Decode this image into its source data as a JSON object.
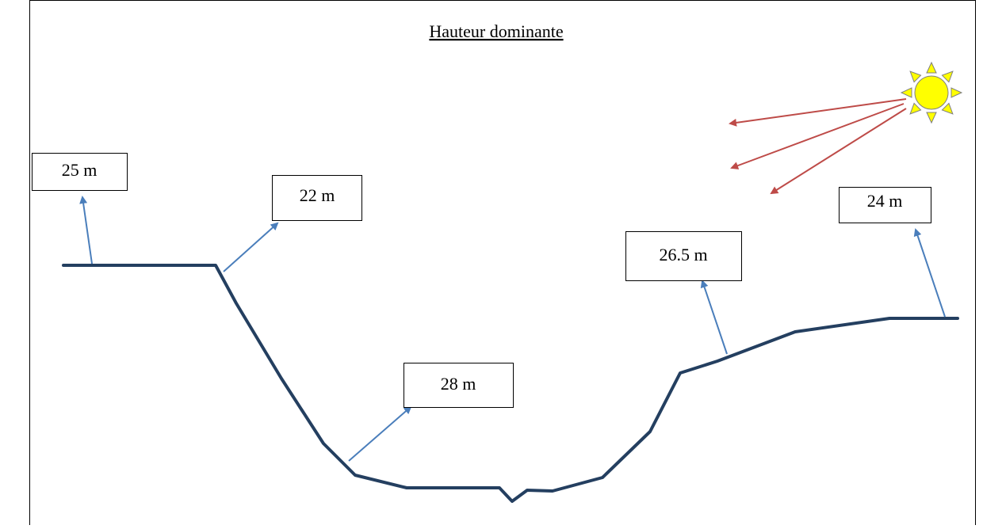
{
  "title": "Hauteur dominante",
  "labels": [
    "25 m",
    "22 m",
    "28 m",
    "26.5 m",
    "24 m"
  ]
}
